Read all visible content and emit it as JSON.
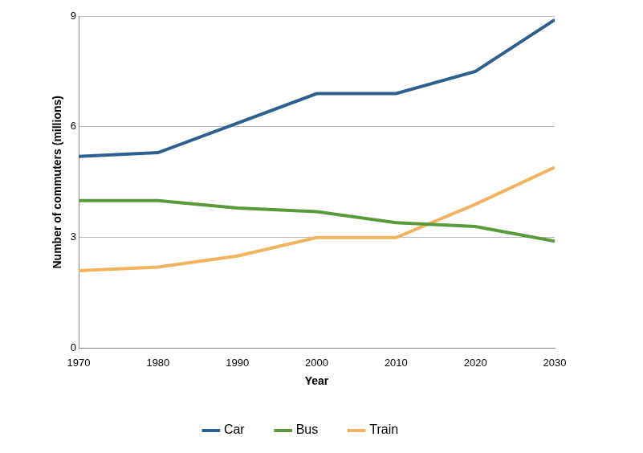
{
  "chart_data": {
    "type": "line",
    "x_label": "Year",
    "y_label": "Number of commuters (millions)",
    "x": [
      1970,
      1980,
      1990,
      2000,
      2010,
      2020,
      2030
    ],
    "xlim": [
      1970,
      2030
    ],
    "xticks": [
      1970,
      1980,
      1990,
      2000,
      2010,
      2020,
      2030
    ],
    "ylim": [
      0,
      9
    ],
    "yticks": [
      0,
      3,
      6,
      9
    ],
    "grid": true,
    "legend": "bottom",
    "series": [
      {
        "name": "Car",
        "color": "#2f5f8f",
        "values": [
          5.2,
          5.3,
          6.1,
          6.9,
          6.9,
          7.5,
          8.9
        ]
      },
      {
        "name": "Bus",
        "color": "#5b9a3c",
        "values": [
          4.0,
          4.0,
          3.8,
          3.7,
          3.4,
          3.3,
          2.9
        ]
      },
      {
        "name": "Train",
        "color": "#f2b35f",
        "values": [
          2.1,
          2.2,
          2.5,
          3.0,
          3.0,
          3.9,
          4.9
        ]
      }
    ]
  }
}
